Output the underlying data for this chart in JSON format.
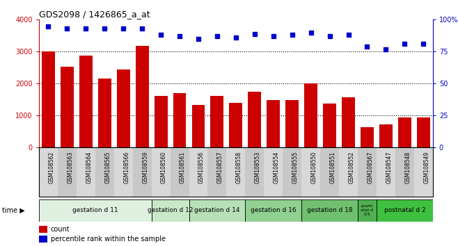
{
  "title": "GDS2098 / 1426865_a_at",
  "samples": [
    "GSM108562",
    "GSM108563",
    "GSM108564",
    "GSM108565",
    "GSM108566",
    "GSM108559",
    "GSM108560",
    "GSM108561",
    "GSM108556",
    "GSM108557",
    "GSM108558",
    "GSM108553",
    "GSM108554",
    "GSM108555",
    "GSM108550",
    "GSM108551",
    "GSM108552",
    "GSM108567",
    "GSM108547",
    "GSM108548",
    "GSM108549"
  ],
  "counts": [
    3000,
    2520,
    2880,
    2160,
    2440,
    3180,
    1620,
    1700,
    1340,
    1620,
    1400,
    1750,
    1480,
    1480,
    2000,
    1380,
    1570,
    640,
    720,
    940,
    950
  ],
  "percentiles": [
    95,
    93,
    93,
    93,
    93,
    93,
    88,
    87,
    85,
    87,
    86,
    89,
    87,
    88,
    90,
    87,
    88,
    79,
    77,
    81,
    81
  ],
  "groups": [
    {
      "label": "gestation d 11",
      "start": 0,
      "end": 5,
      "color": "#e0f0e0"
    },
    {
      "label": "gestation d 12",
      "start": 6,
      "end": 7,
      "color": "#c8e8c8"
    },
    {
      "label": "gestation d 14",
      "start": 8,
      "end": 10,
      "color": "#b8e0b8"
    },
    {
      "label": "gestation d 16",
      "start": 11,
      "end": 13,
      "color": "#90d090"
    },
    {
      "label": "gestation d 18",
      "start": 14,
      "end": 16,
      "color": "#70c070"
    },
    {
      "label": "postn\natal d\n0.5",
      "start": 17,
      "end": 17,
      "color": "#50b050"
    },
    {
      "label": "postnatal d 2",
      "start": 18,
      "end": 20,
      "color": "#40c040"
    }
  ],
  "bar_color": "#cc0000",
  "dot_color": "#0000cc",
  "ylim_left": [
    0,
    4000
  ],
  "ylim_right": [
    0,
    100
  ],
  "yticks_left": [
    0,
    1000,
    2000,
    3000,
    4000
  ],
  "yticks_right": [
    0,
    25,
    50,
    75,
    100
  ],
  "yticklabels_right": [
    "0",
    "25",
    "50",
    "75",
    "100%"
  ],
  "grid_vals": [
    1000,
    2000,
    3000
  ],
  "legend_count": "count",
  "legend_pct": "percentile rank within the sample",
  "time_label": "time"
}
